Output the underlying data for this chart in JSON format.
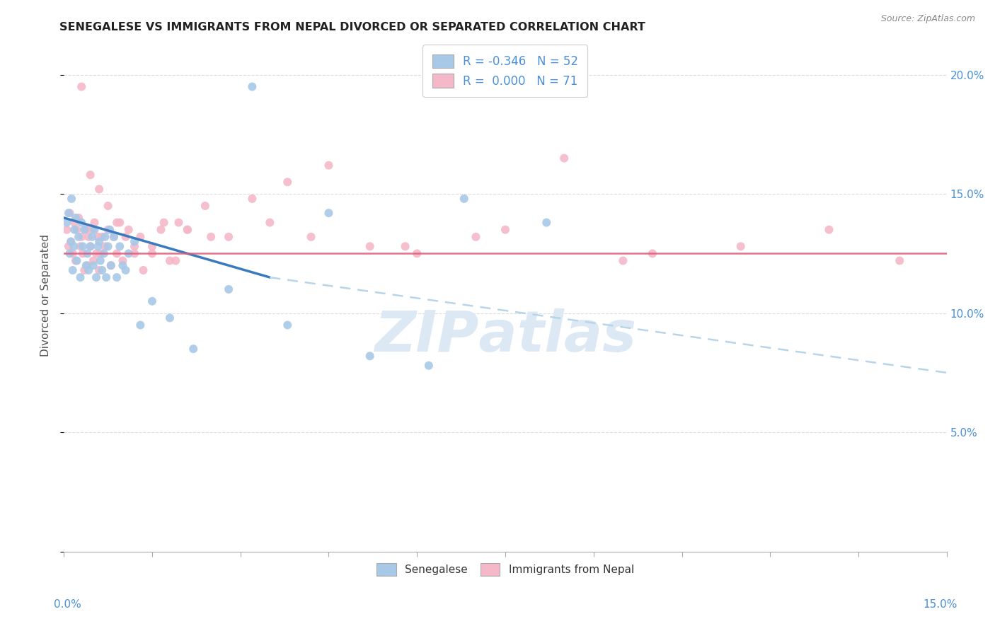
{
  "title": "SENEGALESE VS IMMIGRANTS FROM NEPAL DIVORCED OR SEPARATED CORRELATION CHART",
  "source": "Source: ZipAtlas.com",
  "ylabel": "Divorced or Separated",
  "ytick_vals": [
    0.0,
    5.0,
    10.0,
    15.0,
    20.0
  ],
  "ytick_labels": [
    "",
    "5.0%",
    "10.0%",
    "15.0%",
    "20.0%"
  ],
  "xlim": [
    0.0,
    15.0
  ],
  "ylim": [
    0.0,
    21.5
  ],
  "color_blue": "#a8c8e8",
  "color_blue_line": "#3a7bbf",
  "color_pink": "#f4b8c8",
  "color_pink_line": "#e05878",
  "color_dash": "#b8d4e8",
  "watermark_color": "#dce8f4",
  "senegalese_x": [
    0.05,
    0.08,
    0.1,
    0.12,
    0.13,
    0.15,
    0.17,
    0.18,
    0.2,
    0.22,
    0.25,
    0.28,
    0.3,
    0.32,
    0.35,
    0.38,
    0.4,
    0.42,
    0.45,
    0.48,
    0.5,
    0.52,
    0.55,
    0.58,
    0.6,
    0.62,
    0.65,
    0.68,
    0.7,
    0.72,
    0.75,
    0.78,
    0.8,
    0.85,
    0.9,
    0.95,
    1.0,
    1.05,
    1.1,
    1.2,
    1.3,
    1.5,
    1.8,
    2.2,
    3.2,
    4.5,
    6.8,
    8.2,
    2.8,
    3.8,
    5.2,
    6.2
  ],
  "senegalese_y": [
    13.8,
    14.2,
    12.5,
    13.0,
    14.8,
    11.8,
    12.8,
    13.5,
    14.0,
    12.2,
    13.2,
    11.5,
    13.8,
    12.8,
    13.5,
    12.0,
    12.5,
    11.8,
    12.8,
    13.2,
    12.0,
    13.5,
    11.5,
    12.8,
    13.0,
    12.2,
    11.8,
    12.5,
    13.2,
    11.5,
    12.8,
    13.5,
    12.0,
    13.2,
    11.5,
    12.8,
    12.0,
    11.8,
    12.5,
    13.0,
    9.5,
    10.5,
    9.8,
    8.5,
    19.5,
    14.2,
    14.8,
    13.8,
    11.0,
    9.5,
    8.2,
    7.8
  ],
  "nepal_x": [
    0.05,
    0.08,
    0.1,
    0.12,
    0.15,
    0.18,
    0.2,
    0.22,
    0.25,
    0.28,
    0.3,
    0.32,
    0.35,
    0.38,
    0.4,
    0.42,
    0.45,
    0.48,
    0.5,
    0.52,
    0.55,
    0.58,
    0.6,
    0.62,
    0.65,
    0.7,
    0.75,
    0.8,
    0.85,
    0.9,
    0.95,
    1.0,
    1.1,
    1.2,
    1.3,
    1.5,
    1.7,
    1.9,
    2.1,
    2.4,
    2.8,
    3.2,
    3.8,
    4.5,
    5.2,
    6.0,
    7.0,
    8.5,
    10.0,
    3.5,
    4.2,
    5.8,
    7.5,
    9.5,
    11.5,
    13.0,
    14.2,
    0.3,
    0.45,
    0.6,
    0.75,
    0.9,
    1.05,
    1.2,
    1.35,
    1.5,
    1.65,
    1.8,
    1.95,
    2.1,
    2.5
  ],
  "nepal_y": [
    13.5,
    12.8,
    14.2,
    13.0,
    12.5,
    13.8,
    12.2,
    13.5,
    14.0,
    12.8,
    13.2,
    12.5,
    11.8,
    13.5,
    12.0,
    13.2,
    12.8,
    13.5,
    12.2,
    13.8,
    12.5,
    13.2,
    11.8,
    12.5,
    13.2,
    12.8,
    13.5,
    12.0,
    13.2,
    12.5,
    13.8,
    12.2,
    13.5,
    12.8,
    13.2,
    12.5,
    13.8,
    12.2,
    13.5,
    14.5,
    13.2,
    14.8,
    15.5,
    16.2,
    12.8,
    12.5,
    13.2,
    16.5,
    12.5,
    13.8,
    13.2,
    12.8,
    13.5,
    12.2,
    12.8,
    13.5,
    12.2,
    19.5,
    15.8,
    15.2,
    14.5,
    13.8,
    13.2,
    12.5,
    11.8,
    12.8,
    13.5,
    12.2,
    13.8,
    13.5,
    13.2
  ],
  "trend_blue_x0": 0.0,
  "trend_blue_y0": 14.0,
  "trend_blue_x_solid_end": 3.5,
  "trend_blue_y_solid_end": 11.5,
  "trend_blue_x1": 15.0,
  "trend_blue_y1": 7.5,
  "trend_pink_y": 12.5,
  "title_fontsize": 11.5,
  "source_fontsize": 9,
  "axis_label_fontsize": 11,
  "legend_fontsize": 12
}
